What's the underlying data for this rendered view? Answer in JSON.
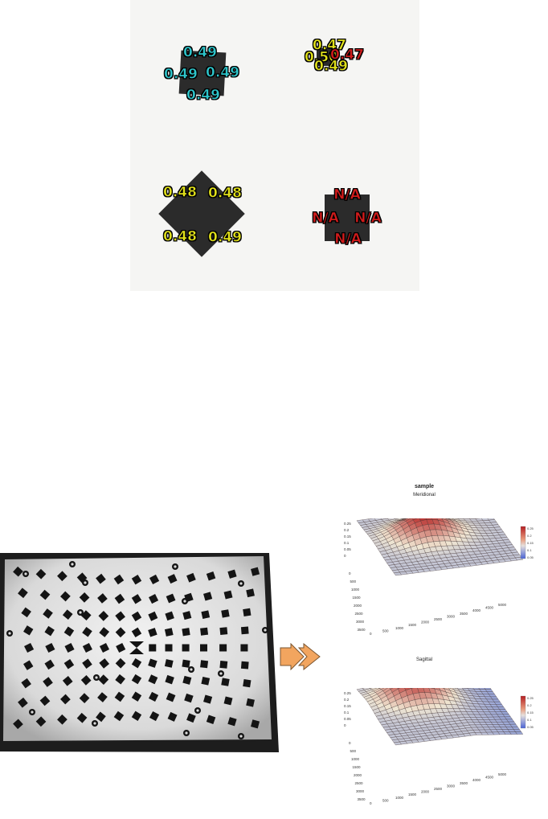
{
  "top_figure": {
    "squares": [
      {
        "name": "square-top-left",
        "labels": [
          {
            "text": "0.49",
            "color": "cyan"
          },
          {
            "text": "0.49",
            "color": "cyan"
          },
          {
            "text": "0.49",
            "color": "cyan"
          },
          {
            "text": "0.49",
            "color": "cyan"
          }
        ]
      },
      {
        "name": "square-top-right",
        "labels": [
          {
            "text": "0.47",
            "color": "yellow"
          },
          {
            "text": "0.50",
            "color": "yellow"
          },
          {
            "text": "0.47",
            "color": "red"
          },
          {
            "text": "0.49",
            "color": "yellow"
          }
        ]
      },
      {
        "name": "square-bottom-left",
        "labels": [
          {
            "text": "0.48",
            "color": "yellow"
          },
          {
            "text": "0.48",
            "color": "yellow"
          },
          {
            "text": "0.48",
            "color": "yellow"
          },
          {
            "text": "0.49",
            "color": "yellow"
          }
        ]
      },
      {
        "name": "square-bottom-right",
        "labels": [
          {
            "text": "N/A",
            "color": "red"
          },
          {
            "text": "N/A",
            "color": "red"
          },
          {
            "text": "N/A",
            "color": "red"
          },
          {
            "text": "N/A",
            "color": "red"
          }
        ]
      }
    ],
    "colors": {
      "cyan": "#2ec6cc",
      "yellow": "#e2e21a",
      "red": "#d11b1b"
    }
  },
  "arrow": {
    "color": "#f2a55f",
    "icon": "double-arrow-right-icon"
  },
  "plots": {
    "main_title": "sample",
    "top": {
      "subtitle": "Meridional",
      "z_ticks": [
        "0.25",
        "0.2",
        "0.15",
        "0.1",
        "0.05",
        "0"
      ],
      "y_ticks": [
        "0",
        "500",
        "1000",
        "1500",
        "2000",
        "2500",
        "3000",
        "3500"
      ],
      "x_ticks": [
        "0",
        "500",
        "1000",
        "1500",
        "2000",
        "2500",
        "3000",
        "3500",
        "4000",
        "4500",
        "5000"
      ],
      "colorbar_ticks": [
        "0.25",
        "0.2",
        "0.15",
        "0.1",
        "0.05"
      ]
    },
    "bottom": {
      "subtitle": "Sagittal",
      "z_ticks": [
        "0.25",
        "0.2",
        "0.15",
        "0.1",
        "0.05",
        "0"
      ],
      "y_ticks": [
        "0",
        "500",
        "1000",
        "1500",
        "2000",
        "2500",
        "3000",
        "3500"
      ],
      "x_ticks": [
        "0",
        "500",
        "1000",
        "1500",
        "2000",
        "2500",
        "3000",
        "3500",
        "4000",
        "4500",
        "5000"
      ],
      "colorbar_ticks": [
        "0.25",
        "0.2",
        "0.15",
        "0.1",
        "0.05"
      ]
    }
  }
}
